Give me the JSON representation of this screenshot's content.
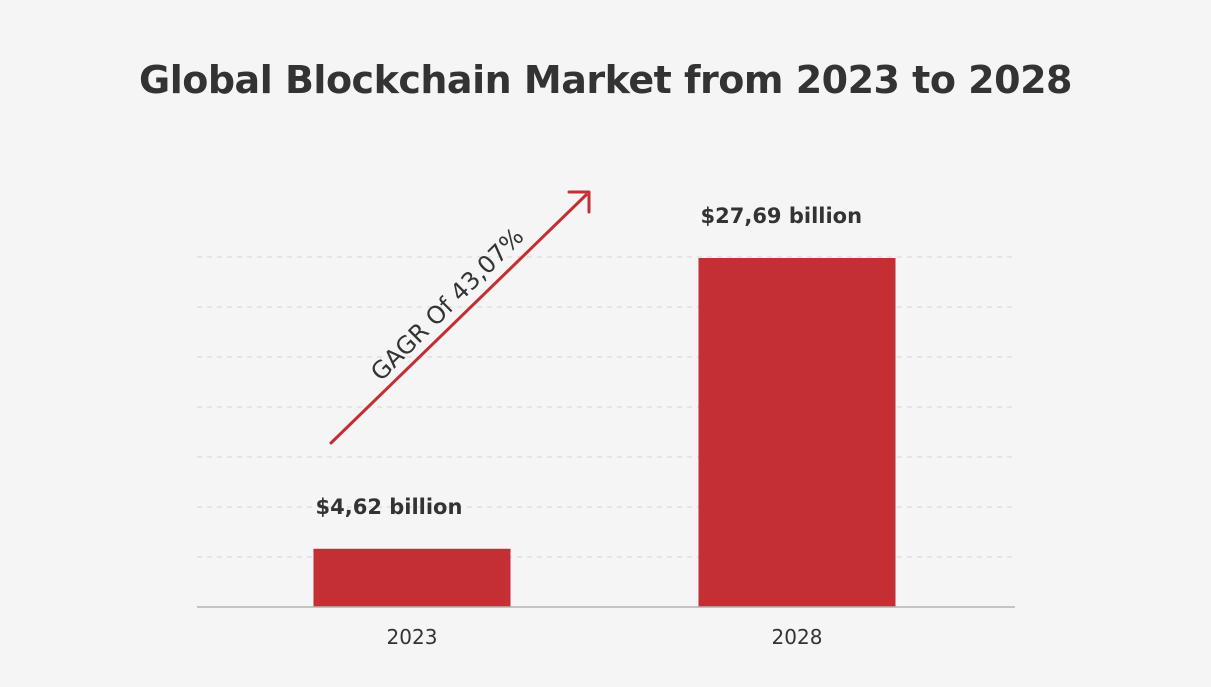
{
  "chart_data": {
    "type": "bar",
    "title": "Global Blockchain Market from 2023 to 2028",
    "categories": [
      "2023",
      "2028"
    ],
    "values": [
      4.62,
      27.69
    ],
    "data_labels": [
      "$4,62 billion",
      "$27,69 billion"
    ],
    "ylim": [
      0,
      35
    ],
    "grid": true,
    "xlabel": "",
    "ylabel": "",
    "annotation": "GAGR Of 43,07%",
    "bar_color": "#c42f33",
    "text_color": "#333333",
    "background_color": "#f5f5f5"
  }
}
